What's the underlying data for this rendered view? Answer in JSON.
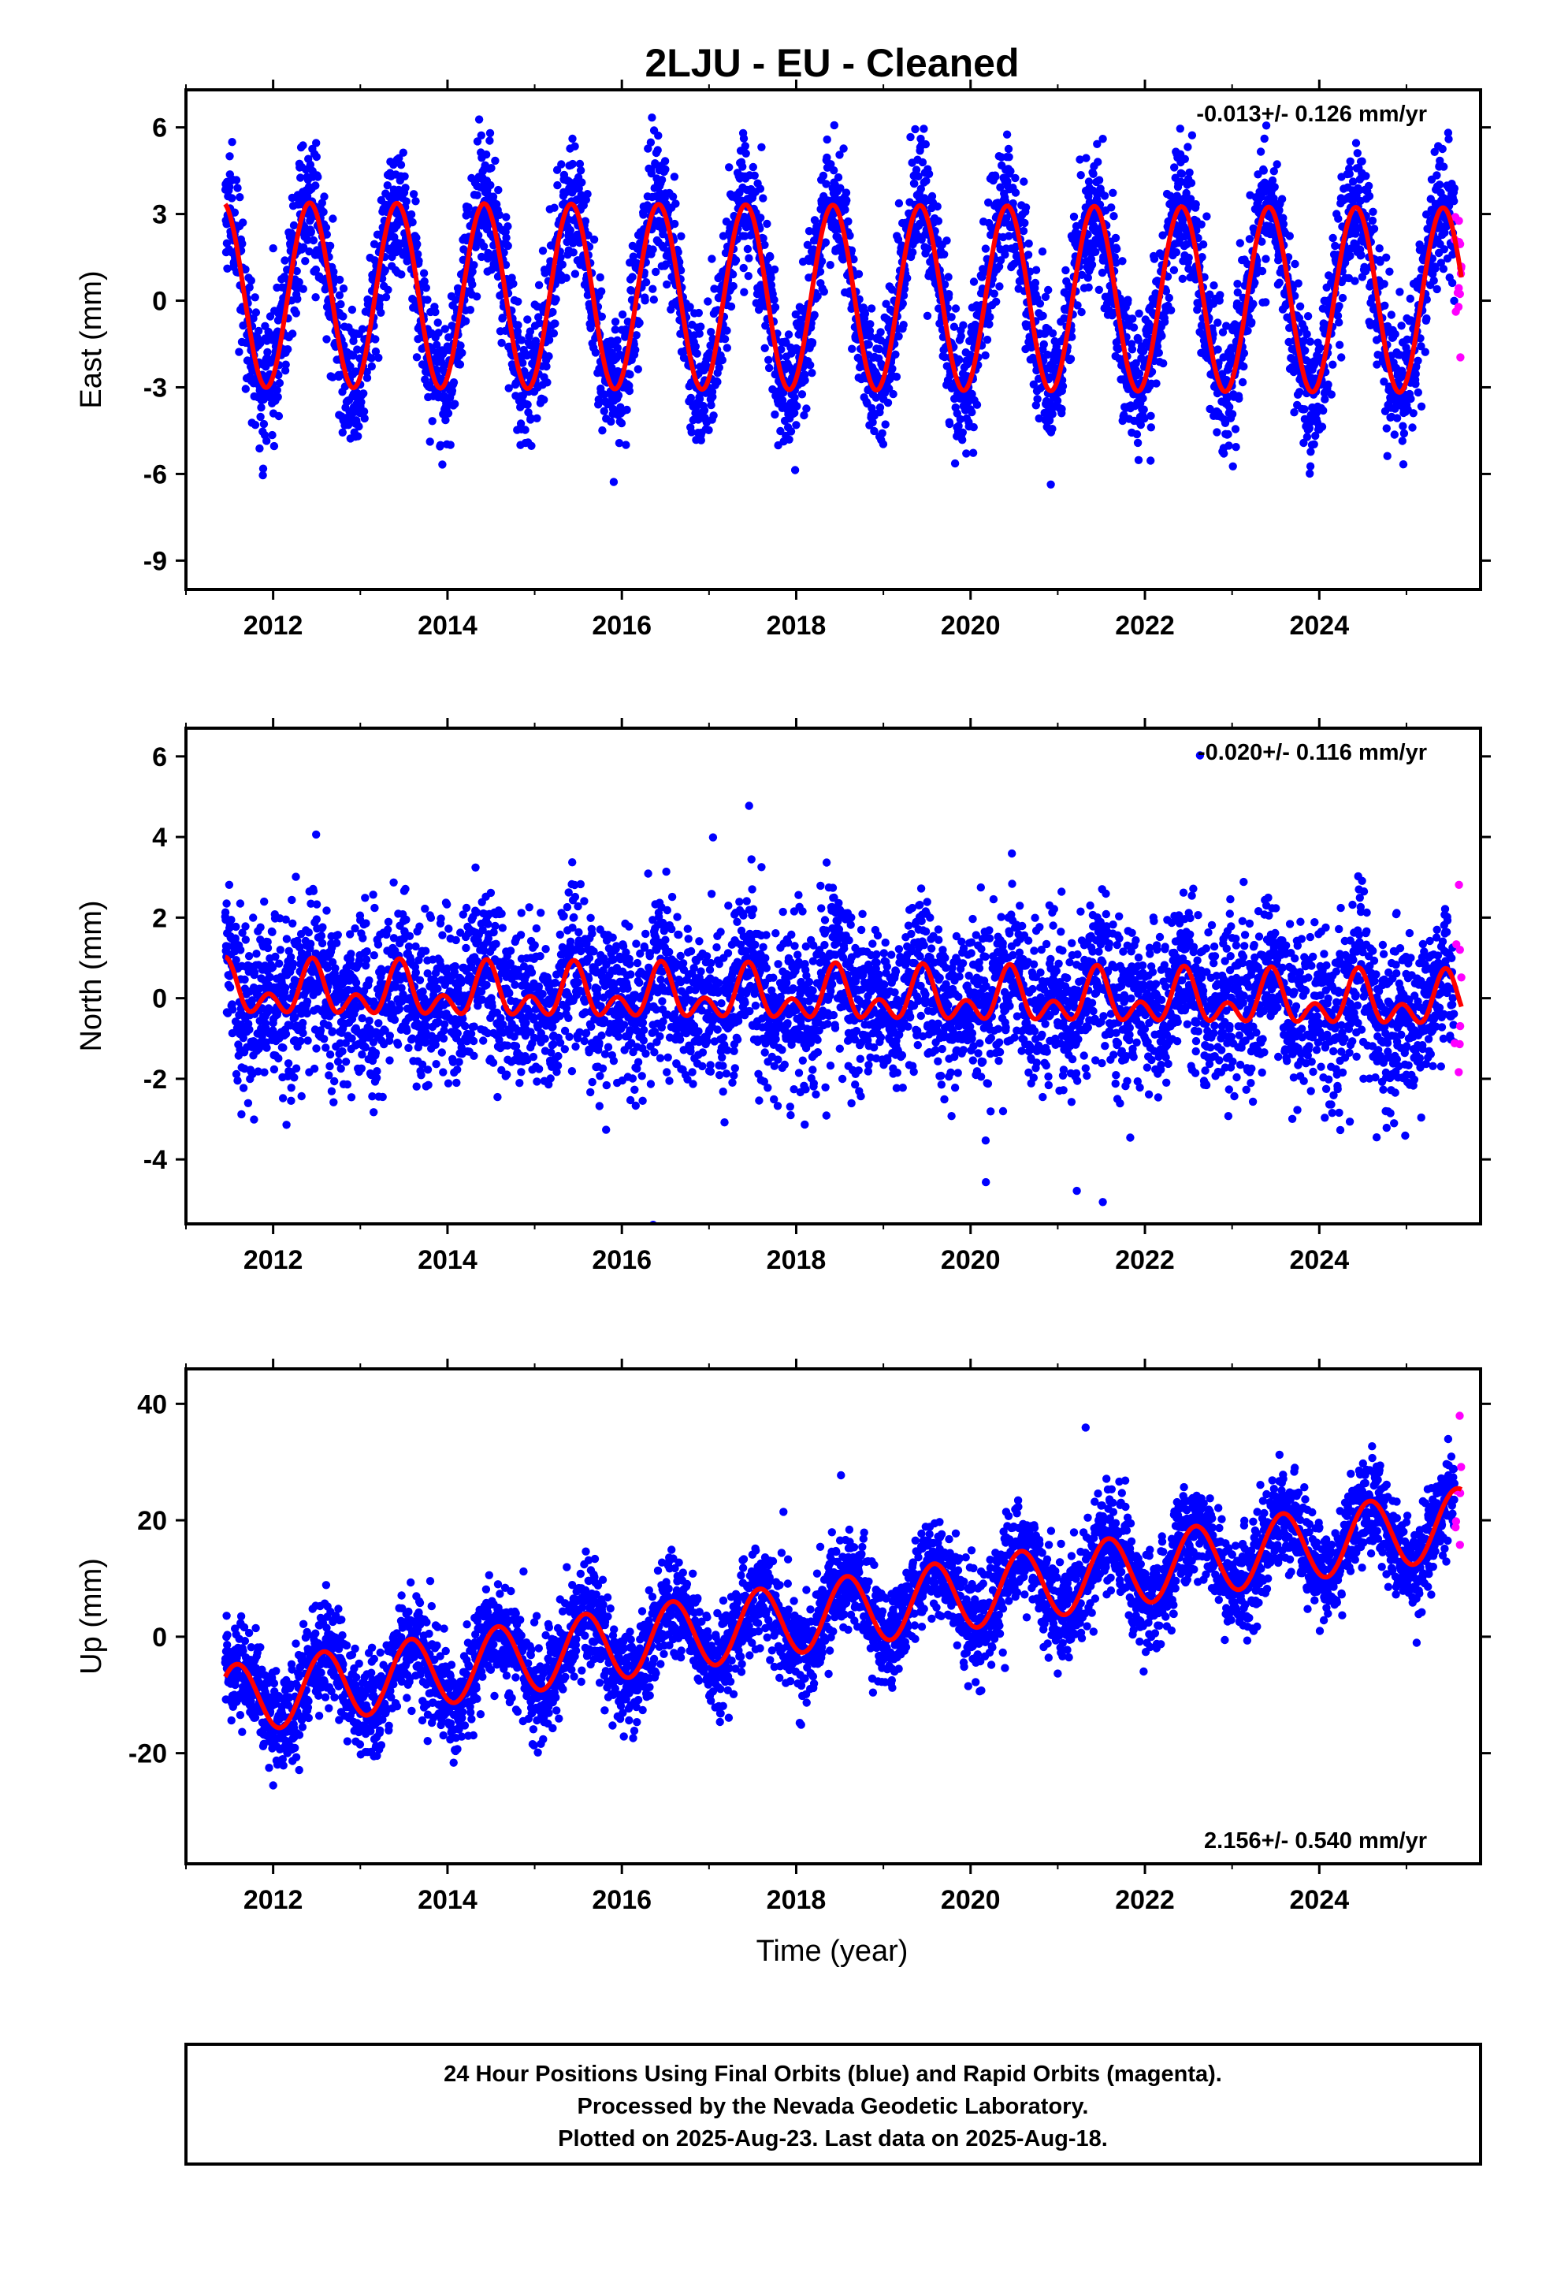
{
  "title": "2LJU  - EU - Cleaned",
  "xlabel": "Time (year)",
  "footer": {
    "line1": "24 Hour Positions Using Final Orbits (blue) and Rapid Orbits (magenta).",
    "line2": "Processed by the Nevada Geodetic Laboratory.",
    "line3": "Plotted on 2025-Aug-23. Last data on 2025-Aug-18."
  },
  "colors": {
    "final": "#0000ff",
    "rapid": "#ff00ff",
    "model": "#ff0000",
    "frame": "#000000"
  },
  "chart_data": [
    {
      "type": "scatter",
      "ylabel": "East (mm)",
      "rate_text": "-0.013+/- 0.126 mm/yr",
      "xlim": [
        2011.0,
        2025.85
      ],
      "ylim": [
        -10.0,
        7.3
      ],
      "xticks": [
        2012,
        2014,
        2016,
        2018,
        2020,
        2022,
        2024
      ],
      "yticks": [
        -9,
        -6,
        -3,
        0,
        3,
        6
      ],
      "data_start": 2011.45,
      "data_end": 2025.63,
      "rapid_start": 2025.55,
      "model": {
        "offset": 0.2,
        "trend_mm_per_yr": -0.013,
        "annual_amp": 3.2,
        "annual_peak": 2012.42,
        "semiannual_amp": 0.0,
        "semiannual_peak": 2012.0
      },
      "noise_sd": 1.15,
      "series": [
        {
          "name": "Final Orbits",
          "color": "#0000ff"
        },
        {
          "name": "Rapid Orbits",
          "color": "#ff00ff"
        },
        {
          "name": "Model",
          "color": "#ff0000"
        }
      ]
    },
    {
      "type": "scatter",
      "ylabel": "North (mm)",
      "rate_text": "-0.020+/- 0.116 mm/yr",
      "xlim": [
        2011.0,
        2025.85
      ],
      "ylim": [
        -5.6,
        6.7
      ],
      "xticks": [
        2012,
        2014,
        2016,
        2018,
        2020,
        2022,
        2024
      ],
      "yticks": [
        -4,
        -2,
        0,
        2,
        4,
        6
      ],
      "data_start": 2011.45,
      "data_end": 2025.63,
      "rapid_start": 2025.55,
      "model": {
        "offset": 0.15,
        "trend_mm_per_yr": -0.02,
        "annual_amp": 0.45,
        "annual_peak": 2012.45,
        "semiannual_amp": 0.42,
        "semiannual_peak": 2011.95
      },
      "noise_sd": 1.0,
      "series": [
        {
          "name": "Final Orbits",
          "color": "#0000ff"
        },
        {
          "name": "Rapid Orbits",
          "color": "#ff00ff"
        },
        {
          "name": "Model",
          "color": "#ff0000"
        }
      ]
    },
    {
      "type": "scatter",
      "ylabel": "Up (mm)",
      "rate_text": "2.156+/- 0.540 mm/yr",
      "xlim": [
        2011.0,
        2025.85
      ],
      "ylim": [
        -39.0,
        46.0
      ],
      "xticks": [
        2012,
        2014,
        2016,
        2018,
        2020,
        2022,
        2024
      ],
      "yticks": [
        -20,
        0,
        20,
        40
      ],
      "data_start": 2011.45,
      "data_end": 2025.63,
      "rapid_start": 2025.55,
      "model": {
        "offset": -11.0,
        "trend_mm_per_yr": 2.156,
        "annual_amp": 6.0,
        "annual_peak": 2012.58,
        "semiannual_amp": 0.0,
        "semiannual_peak": 2012.0
      },
      "noise_sd": 4.3,
      "series": [
        {
          "name": "Final Orbits",
          "color": "#0000ff"
        },
        {
          "name": "Rapid Orbits",
          "color": "#ff00ff"
        },
        {
          "name": "Model",
          "color": "#ff0000"
        }
      ]
    }
  ]
}
